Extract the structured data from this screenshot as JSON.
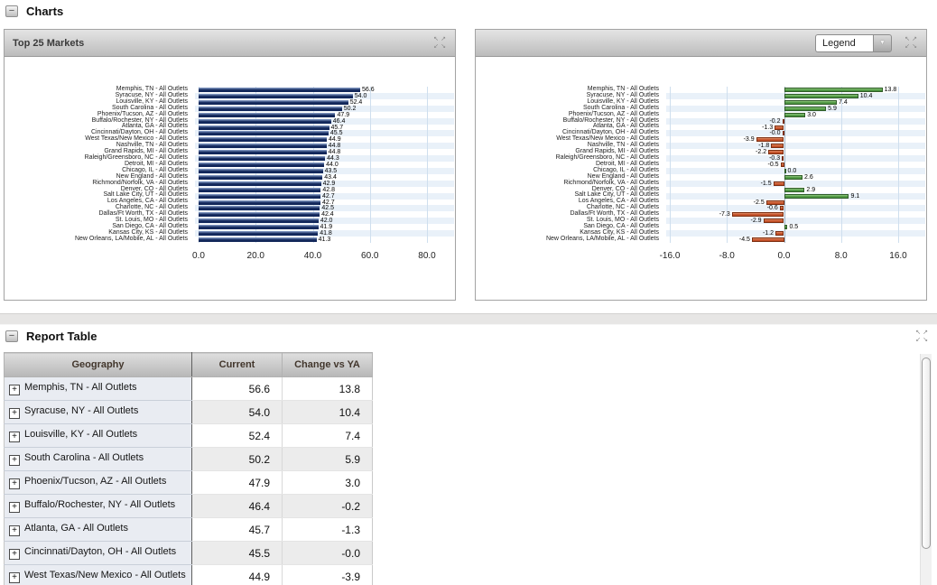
{
  "icons": {
    "collapse_glyph": "−",
    "plus_glyph": "+",
    "dropdown_arrow": "▼",
    "expand_arrows": [
      "↖",
      "↗",
      "↙",
      "↘"
    ]
  },
  "charts_section": {
    "title": "Charts"
  },
  "left_panel": {
    "title": "Top 25 Markets"
  },
  "right_panel": {
    "legend_label": "Legend"
  },
  "report_section": {
    "title": "Report Table"
  },
  "chart_data": [
    {
      "type": "bar",
      "orientation": "horizontal",
      "title": "Top 25 Markets",
      "categories": [
        "Memphis, TN - All Outlets",
        "Syracuse, NY - All Outlets",
        "Louisville, KY - All Outlets",
        "South Carolina - All Outlets",
        "Phoenix/Tucson, AZ - All Outlets",
        "Buffalo/Rochester, NY - All Outlets",
        "Atlanta, GA - All Outlets",
        "Cincinnati/Dayton, OH - All Outlets",
        "West Texas/New Mexico - All Outlets",
        "Nashville, TN - All Outlets",
        "Grand Rapids, MI - All Outlets",
        "Raleigh/Greensboro, NC - All Outlets",
        "Detroit, MI - All Outlets",
        "Chicago, IL - All Outlets",
        "New England - All Outlets",
        "Richmond/Norfolk, VA - All Outlets",
        "Denver, CO - All Outlets",
        "Salt Lake City, UT - All Outlets",
        "Los Angeles, CA - All Outlets",
        "Charlotte, NC - All Outlets",
        "Dallas/Ft Worth, TX - All Outlets",
        "St. Louis, MO - All Outlets",
        "San Diego, CA - All Outlets",
        "Kansas City, KS - All Outlets",
        "New Orleans, LA/Mobile, AL - All Outlets"
      ],
      "values": [
        56.6,
        54.0,
        52.4,
        50.2,
        47.9,
        46.4,
        45.7,
        45.5,
        44.9,
        44.8,
        44.8,
        44.3,
        44.0,
        43.5,
        43.4,
        42.9,
        42.8,
        42.7,
        42.7,
        42.5,
        42.4,
        42.0,
        41.9,
        41.8,
        41.3
      ],
      "value_labels": [
        "56.6",
        "54.0",
        "52.4",
        "50.2",
        "47.9",
        "46.4",
        "45.7",
        "45.5",
        "44.9",
        "44.8",
        "44.8",
        "44.3",
        "44.0",
        "43.5",
        "43.4",
        "42.9",
        "42.8",
        "42.7",
        "42.7",
        "42.5",
        "42.4",
        "42.0",
        "41.9",
        "41.8",
        "41.3"
      ],
      "xlim": [
        0,
        80
      ],
      "xticks": {
        "values": [
          0,
          20,
          40,
          60,
          80
        ],
        "labels": [
          "0.0",
          "20.0",
          "40.0",
          "60.0",
          "80.0"
        ]
      },
      "grid": true,
      "colors": {
        "bar": "#12275a",
        "bar_light": "#8fa6cf"
      }
    },
    {
      "type": "bar",
      "orientation": "horizontal",
      "title": "",
      "categories": [
        "Memphis, TN - All Outlets",
        "Syracuse, NY - All Outlets",
        "Louisville, KY - All Outlets",
        "South Carolina - All Outlets",
        "Phoenix/Tucson, AZ - All Outlets",
        "Buffalo/Rochester, NY - All Outlets",
        "Atlanta, GA - All Outlets",
        "Cincinnati/Dayton, OH - All Outlets",
        "West Texas/New Mexico - All Outlets",
        "Nashville, TN - All Outlets",
        "Grand Rapids, MI - All Outlets",
        "Raleigh/Greensboro, NC - All Outlets",
        "Detroit, MI - All Outlets",
        "Chicago, IL - All Outlets",
        "New England - All Outlets",
        "Richmond/Norfolk, VA - All Outlets",
        "Denver, CO - All Outlets",
        "Salt Lake City, UT - All Outlets",
        "Los Angeles, CA - All Outlets",
        "Charlotte, NC - All Outlets",
        "Dallas/Ft Worth, TX - All Outlets",
        "St. Louis, MO - All Outlets",
        "San Diego, CA - All Outlets",
        "Kansas City, KS - All Outlets",
        "New Orleans, LA/Mobile, AL - All Outlets"
      ],
      "values": [
        13.8,
        10.4,
        7.4,
        5.9,
        3.0,
        -0.2,
        -1.3,
        -0.0,
        -3.9,
        -1.8,
        -2.2,
        -0.3,
        -0.5,
        0.0,
        2.6,
        -1.5,
        2.9,
        9.1,
        -2.5,
        -0.6,
        -7.3,
        -2.9,
        0.5,
        -1.2,
        -4.5
      ],
      "value_labels": [
        "13.8",
        "10.4",
        "7.4",
        "5.9",
        "3.0",
        "-0.2",
        "-1.3",
        "-0.0",
        "-3.9",
        "-1.8",
        "-2.2",
        "-0.3",
        "-0.5",
        "0.0",
        "2.6",
        "-1.5",
        "2.9",
        "9.1",
        "-2.5",
        "-0.6",
        "-7.3",
        "-2.9",
        "0.5",
        "-1.2",
        "-4.5"
      ],
      "xlim": [
        -16,
        16
      ],
      "xticks": {
        "values": [
          -16,
          -8,
          0,
          8,
          16
        ],
        "labels": [
          "-16.0",
          "-8.0",
          "0.0",
          "8.0",
          "16.0"
        ]
      },
      "grid": true,
      "colors": {
        "positive": "#4c9440",
        "positive_light": "#95cc84",
        "positive_border": "#2f5c28",
        "negative": "#c24f27",
        "negative_light": "#e2906a",
        "negative_border": "#7c2f12"
      }
    }
  ],
  "table": {
    "columns": [
      {
        "label": "Geography"
      },
      {
        "label": "Current"
      },
      {
        "label": "Change vs YA"
      }
    ],
    "rows": [
      {
        "geography": "Memphis, TN - All Outlets",
        "current": "56.6",
        "change": "13.8"
      },
      {
        "geography": "Syracuse, NY - All Outlets",
        "current": "54.0",
        "change": "10.4"
      },
      {
        "geography": "Louisville, KY - All Outlets",
        "current": "52.4",
        "change": "7.4"
      },
      {
        "geography": "South Carolina - All Outlets",
        "current": "50.2",
        "change": "5.9"
      },
      {
        "geography": "Phoenix/Tucson, AZ - All Outlets",
        "current": "47.9",
        "change": "3.0"
      },
      {
        "geography": "Buffalo/Rochester, NY - All Outlets",
        "current": "46.4",
        "change": "-0.2"
      },
      {
        "geography": "Atlanta, GA - All Outlets",
        "current": "45.7",
        "change": "-1.3"
      },
      {
        "geography": "Cincinnati/Dayton, OH - All Outlets",
        "current": "45.5",
        "change": "-0.0"
      },
      {
        "geography": "West Texas/New Mexico - All Outlets",
        "current": "44.9",
        "change": "-3.9"
      }
    ]
  }
}
